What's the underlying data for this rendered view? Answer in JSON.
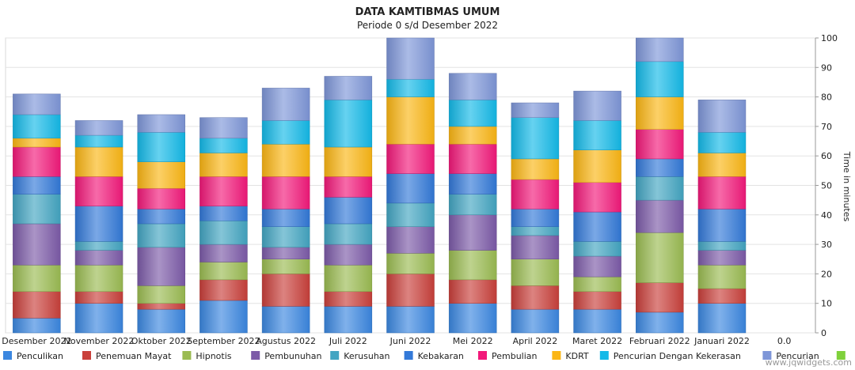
{
  "chart_data": {
    "type": "bar",
    "stacked": true,
    "title": "DATA KAMTIBMAS UMUM",
    "subtitle": "Periode 0 s/d Desember 2022",
    "ylabel": "Time in minutes",
    "ylim": [
      0,
      100
    ],
    "y_ticks": [
      0,
      10,
      20,
      30,
      40,
      50,
      60,
      70,
      80,
      90,
      100
    ],
    "categories": [
      "Desember 2022",
      "November 2022",
      "Oktober 2022",
      "September 2022",
      "Agustus 2022",
      "Juli 2022",
      "Juni 2022",
      "Mei 2022",
      "April 2022",
      "Maret 2022",
      "Februari 2022",
      "Januari 2022",
      "0.0"
    ],
    "series": [
      {
        "name": "Penculikan",
        "color": "#3b87e0",
        "values": [
          5,
          10,
          8,
          11,
          9,
          9,
          9,
          10,
          8,
          8,
          7,
          10,
          0
        ]
      },
      {
        "name": "Penemuan Mayat",
        "color": "#c9403b",
        "values": [
          9,
          4,
          2,
          7,
          11,
          5,
          11,
          8,
          8,
          6,
          10,
          5,
          0
        ]
      },
      {
        "name": "Hipnotis",
        "color": "#9bbb52",
        "values": [
          9,
          9,
          6,
          6,
          5,
          9,
          7,
          10,
          9,
          5,
          17,
          8,
          0
        ]
      },
      {
        "name": "Pembunuhan",
        "color": "#7c5ba8",
        "values": [
          14,
          5,
          13,
          6,
          4,
          7,
          9,
          12,
          8,
          7,
          11,
          5,
          0
        ]
      },
      {
        "name": "Kerusuhan",
        "color": "#43a5c2",
        "values": [
          10,
          3,
          8,
          8,
          7,
          7,
          8,
          7,
          3,
          5,
          8,
          3,
          0
        ]
      },
      {
        "name": "Kebakaran",
        "color": "#3379d8",
        "values": [
          6,
          12,
          5,
          5,
          6,
          9,
          10,
          7,
          6,
          10,
          6,
          11,
          0
        ]
      },
      {
        "name": "Pembulian",
        "color": "#f2197a",
        "values": [
          10,
          10,
          7,
          10,
          11,
          7,
          10,
          10,
          10,
          10,
          10,
          11,
          0
        ]
      },
      {
        "name": "KDRT",
        "color": "#fbb615",
        "values": [
          3,
          10,
          9,
          8,
          11,
          10,
          16,
          6,
          7,
          11,
          11,
          8,
          0
        ]
      },
      {
        "name": "Pencurian Dengan Kekerasan",
        "color": "#14b9e8",
        "values": [
          8,
          4,
          10,
          5,
          8,
          16,
          6,
          9,
          14,
          10,
          12,
          7,
          0
        ]
      },
      {
        "name": "Pencurian",
        "color": "#7e96d8",
        "values": [
          7,
          5,
          6,
          7,
          11,
          8,
          14,
          9,
          5,
          10,
          8,
          11,
          0
        ]
      },
      {
        "name": "",
        "color": "#7fd13b",
        "values": [
          0,
          0,
          0,
          0,
          0,
          0,
          0,
          0,
          0,
          0,
          0,
          0,
          0
        ]
      }
    ],
    "grid": true,
    "legend_position": "bottom"
  },
  "watermark": "www.jqwidgets.com"
}
